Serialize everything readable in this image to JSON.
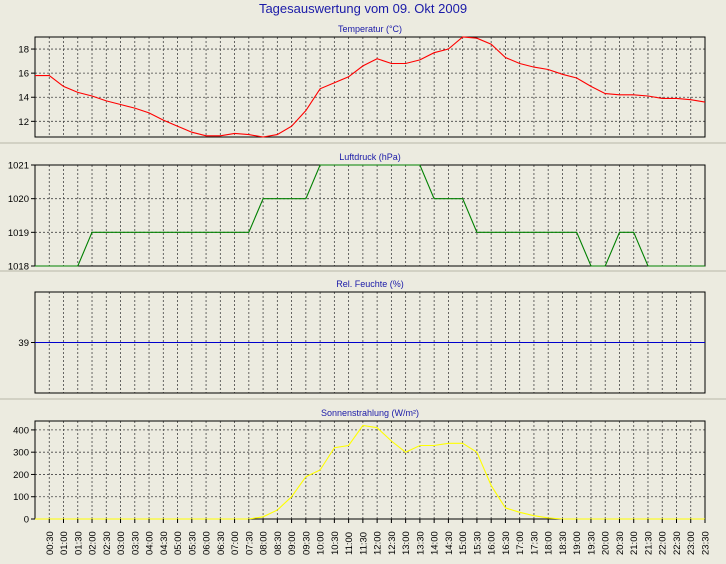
{
  "page_title": "Tagesauswertung vom 09. Okt 2009",
  "colors": {
    "background": "#ecebe0",
    "title": "#1a1aa8",
    "grid": "#444444",
    "temperature": "#ff0000",
    "pressure": "#008000",
    "humidity": "#0000cc",
    "radiation": "#ffff00"
  },
  "chart_data": [
    {
      "type": "line",
      "title": "Temperatur (°C)",
      "ylim": [
        10.7,
        19
      ],
      "yticks": [
        12,
        14,
        16,
        18
      ],
      "grid": true,
      "series": [
        {
          "color": "#ff0000",
          "x": [
            0,
            0.5,
            1,
            1.5,
            2,
            2.5,
            3,
            3.5,
            4,
            4.5,
            5,
            5.5,
            6,
            6.5,
            7,
            7.5,
            8,
            8.5,
            9,
            9.5,
            10,
            10.5,
            11,
            11.5,
            12,
            12.5,
            13,
            13.5,
            14,
            14.5,
            15,
            15.5,
            16,
            16.5,
            17,
            17.5,
            18,
            18.5,
            19,
            19.5,
            20,
            20.5,
            21,
            21.5,
            22,
            22.5,
            23,
            23.5
          ],
          "y": [
            15.8,
            15.8,
            14.9,
            14.4,
            14.1,
            13.7,
            13.4,
            13.1,
            12.7,
            12.1,
            11.6,
            11.1,
            10.8,
            10.8,
            11.0,
            10.9,
            10.7,
            10.9,
            11.6,
            12.9,
            14.7,
            15.2,
            15.7,
            16.6,
            17.2,
            16.8,
            16.8,
            17.1,
            17.7,
            18.0,
            19.0,
            18.9,
            18.4,
            17.3,
            16.8,
            16.5,
            16.3,
            15.9,
            15.6,
            14.9,
            14.3,
            14.2,
            14.2,
            14.1,
            13.9,
            13.9,
            13.8,
            13.6
          ]
        }
      ]
    },
    {
      "type": "line",
      "title": "Luftdruck (hPa)",
      "ylim": [
        1018,
        1021
      ],
      "yticks": [
        1018,
        1019,
        1020,
        1021
      ],
      "grid": true,
      "series": [
        {
          "color": "#008000",
          "x": [
            0,
            1.5,
            2,
            2.5,
            7.5,
            8,
            8.5,
            9,
            9.5,
            10,
            10.5,
            13,
            13.5,
            14,
            14.5,
            15,
            15.5,
            19,
            19.5,
            20,
            20.5,
            21,
            21.5,
            22,
            23.5
          ],
          "y": [
            1018,
            1018,
            1019,
            1019,
            1019,
            1020,
            1020,
            1020,
            1020,
            1021,
            1021,
            1021,
            1021,
            1020,
            1020,
            1020,
            1019,
            1019,
            1018,
            1018,
            1019,
            1019,
            1018,
            1018,
            1018
          ]
        }
      ]
    },
    {
      "type": "line",
      "title": "Rel. Feuchte (%)",
      "ylim": [
        38,
        40
      ],
      "yticks": [
        39
      ],
      "grid": true,
      "series": [
        {
          "color": "#0000cc",
          "x": [
            0,
            23.5
          ],
          "y": [
            39,
            39
          ]
        }
      ]
    },
    {
      "type": "line",
      "title": "Sonnenstrahlung (W/m²)",
      "ylim": [
        0,
        440
      ],
      "yticks": [
        0,
        100,
        200,
        300,
        400
      ],
      "grid": true,
      "series": [
        {
          "color": "#ffff00",
          "x": [
            0,
            6.5,
            7,
            7.5,
            8,
            8.5,
            9,
            9.5,
            10,
            10.5,
            11,
            11.5,
            12,
            12.5,
            13,
            13.5,
            14,
            14.5,
            15,
            15.5,
            16,
            16.5,
            17,
            17.5,
            18,
            18.5,
            23.5
          ],
          "y": [
            0,
            0,
            0,
            0,
            10,
            40,
            100,
            190,
            220,
            320,
            330,
            420,
            410,
            350,
            300,
            330,
            330,
            340,
            340,
            300,
            150,
            50,
            30,
            15,
            5,
            0,
            0
          ]
        }
      ]
    }
  ],
  "x_axis": {
    "tick_labels": [
      "00:30",
      "01:00",
      "01:30",
      "02:00",
      "02:30",
      "03:00",
      "03:30",
      "04:00",
      "04:30",
      "05:00",
      "05:30",
      "06:00",
      "06:30",
      "07:00",
      "07:30",
      "08:00",
      "08:30",
      "09:00",
      "09:30",
      "10:00",
      "10:30",
      "11:00",
      "11:30",
      "12:00",
      "12:30",
      "13:00",
      "13:30",
      "14:00",
      "14:30",
      "15:00",
      "15:30",
      "16:00",
      "16:30",
      "17:00",
      "17:30",
      "18:00",
      "18:30",
      "19:00",
      "19:30",
      "20:00",
      "20:30",
      "21:00",
      "21:30",
      "22:00",
      "22:30",
      "23:00",
      "23:30"
    ],
    "range": [
      0,
      23.5
    ]
  }
}
